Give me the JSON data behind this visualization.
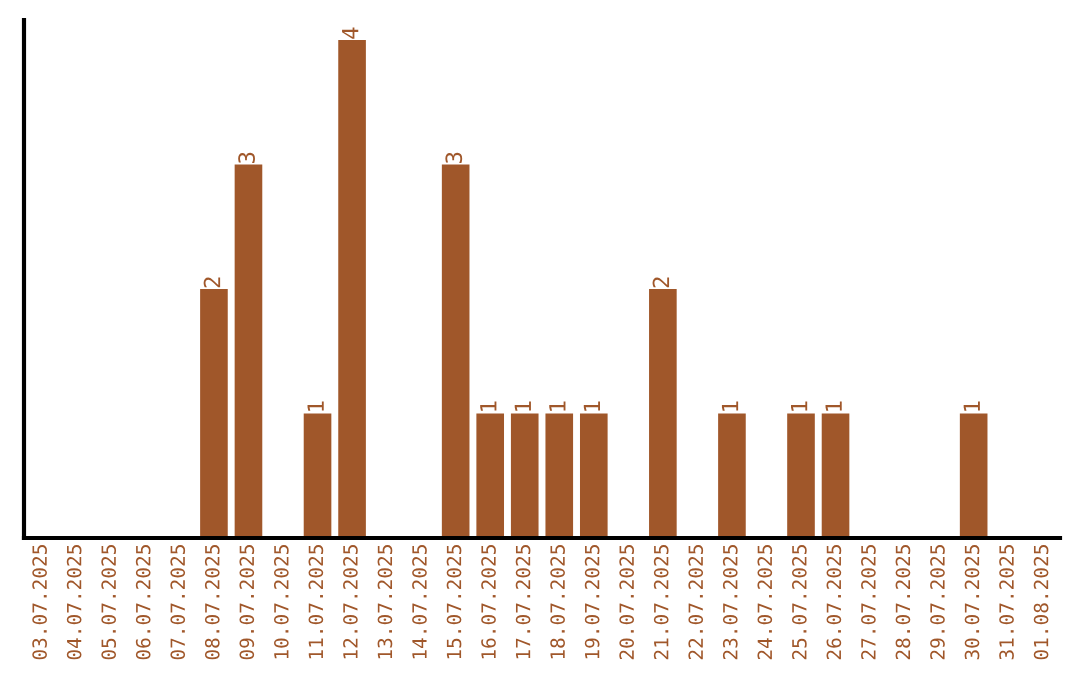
{
  "chart_data": {
    "type": "bar",
    "categories": [
      "03.07.2025",
      "04.07.2025",
      "05.07.2025",
      "06.07.2025",
      "07.07.2025",
      "08.07.2025",
      "09.07.2025",
      "10.07.2025",
      "11.07.2025",
      "12.07.2025",
      "13.07.2025",
      "14.07.2025",
      "15.07.2025",
      "16.07.2025",
      "17.07.2025",
      "18.07.2025",
      "19.07.2025",
      "20.07.2025",
      "21.07.2025",
      "22.07.2025",
      "23.07.2025",
      "24.07.2025",
      "25.07.2025",
      "26.07.2025",
      "27.07.2025",
      "28.07.2025",
      "29.07.2025",
      "30.07.2025",
      "31.07.2025",
      "01.08.2025"
    ],
    "values": [
      0,
      0,
      0,
      0,
      0,
      2,
      3,
      0,
      1,
      4,
      0,
      0,
      3,
      1,
      1,
      1,
      1,
      0,
      2,
      0,
      1,
      0,
      1,
      1,
      0,
      0,
      0,
      1,
      0,
      0
    ],
    "value_labels": [
      null,
      null,
      null,
      null,
      null,
      "2",
      "3",
      null,
      "1",
      "4",
      null,
      null,
      "3",
      "1",
      "1",
      "1",
      "1",
      null,
      "2",
      null,
      "1",
      null,
      "1",
      "1",
      null,
      null,
      null,
      "1",
      null,
      null
    ],
    "color": "#a0572a",
    "ylim": [
      0,
      4.16
    ],
    "tick_labels": "x",
    "grid": false,
    "legend": false
  }
}
